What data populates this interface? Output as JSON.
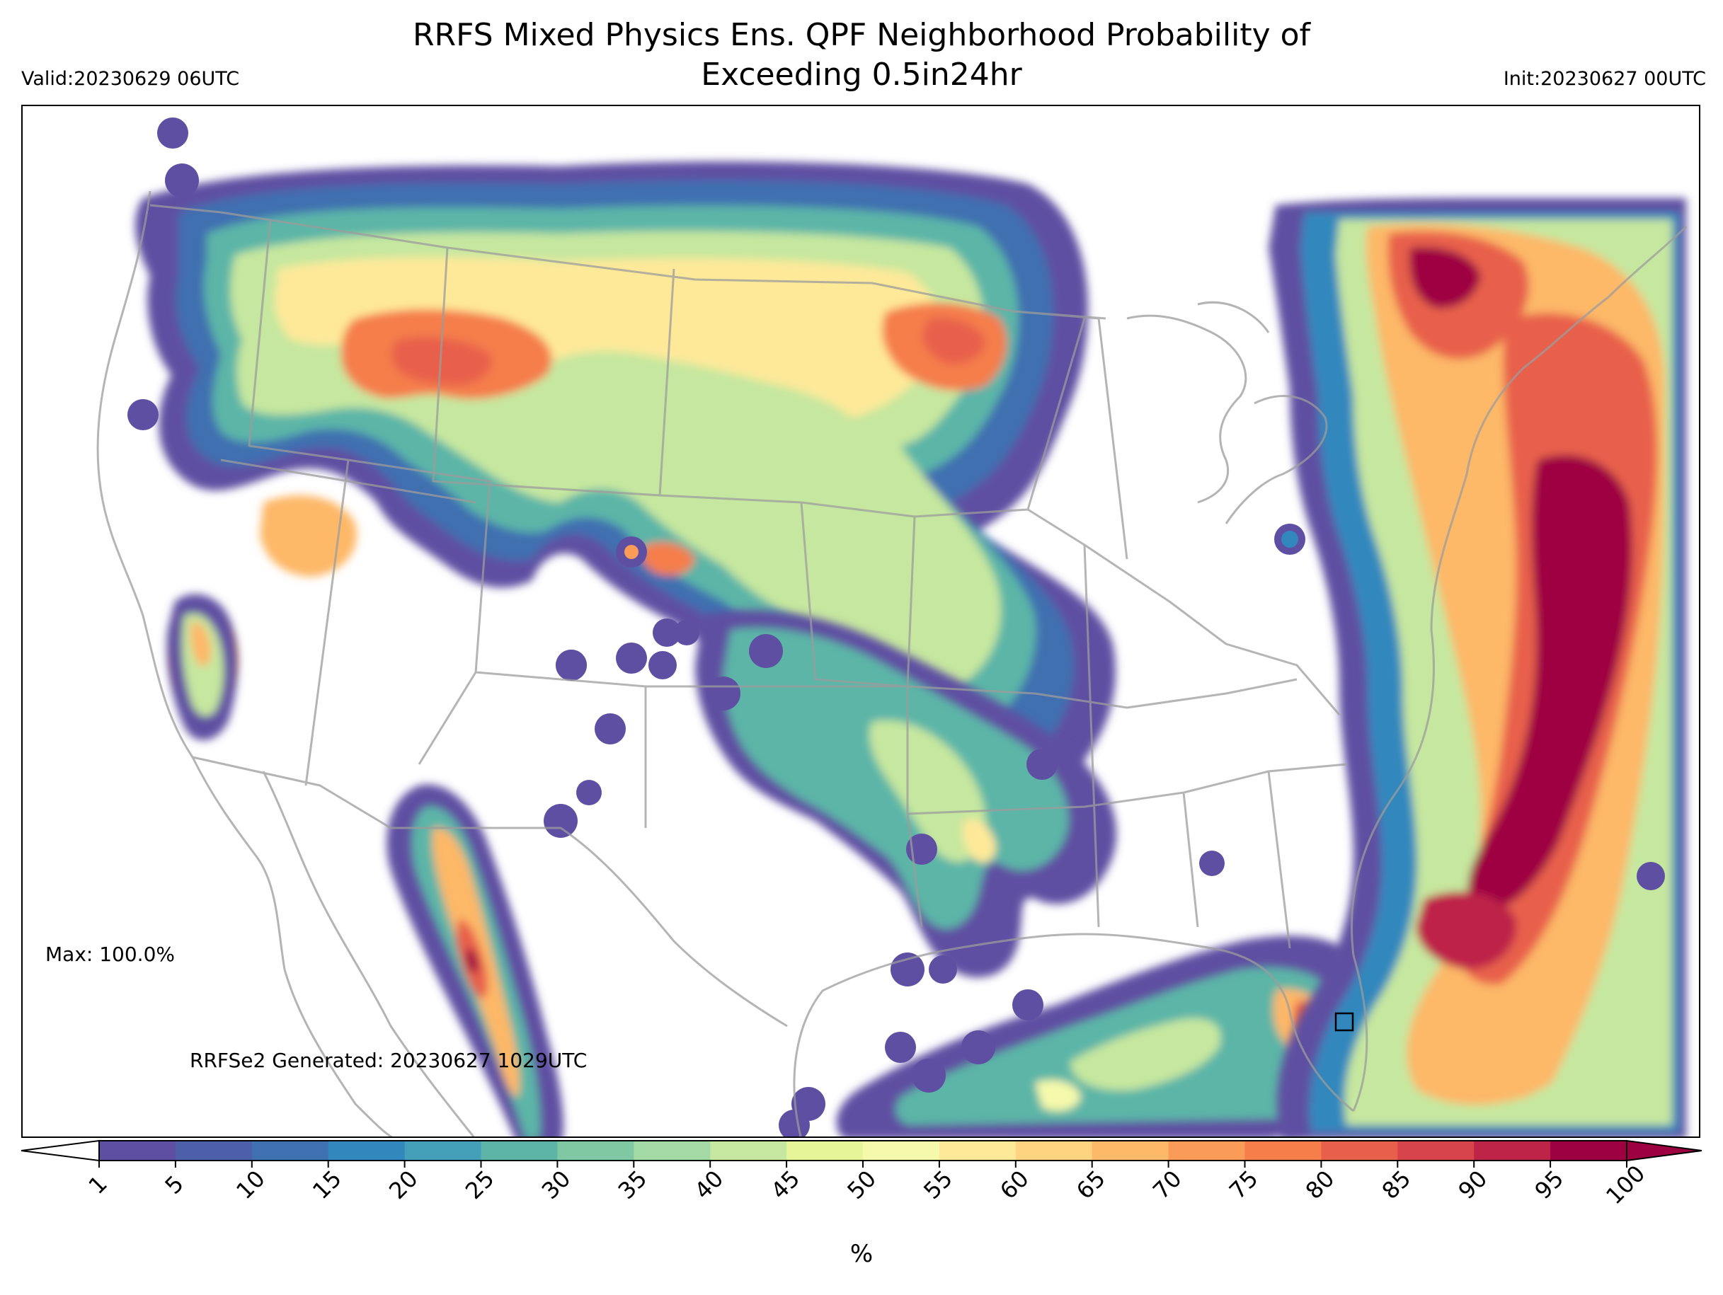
{
  "title": {
    "line1": "RRFS Mixed Physics Ens. QPF Neighborhood Probability of",
    "line2": "Exceeding 0.5in24hr"
  },
  "valid_label": "Valid:20230629 06UTC",
  "init_label": "Init:20230627 00UTC",
  "max_label": "Max: 100.0%",
  "generated_label": "RRFSe2 Generated: 20230627 1029UTC",
  "colorbar": {
    "unit": "%",
    "ticks": [
      "1",
      "5",
      "10",
      "15",
      "20",
      "25",
      "30",
      "35",
      "40",
      "45",
      "50",
      "55",
      "60",
      "65",
      "70",
      "75",
      "80",
      "85",
      "90",
      "95",
      "100"
    ],
    "colors": [
      "#5e4fa2",
      "#4d5fa9",
      "#3f70b0",
      "#3288bd",
      "#449fb8",
      "#5cb5a7",
      "#80c7a3",
      "#a3d9a4",
      "#c6e79f",
      "#e6f598",
      "#f5f9ac",
      "#fee999",
      "#fed481",
      "#fdb868",
      "#fa9b58",
      "#f57e4b",
      "#e8604c",
      "#d7444b",
      "#be2448",
      "#9e0142"
    ],
    "extend_low_color": "#ffffff",
    "extend_high_color": "#9e0142"
  },
  "map": {
    "projection": "lambert-conformal",
    "region": "CONUS",
    "variable": "24-hr QPF neighborhood probability exceeding 0.5 in",
    "units": "%",
    "max_marker": {
      "lat": 28.0,
      "lon": -81.8
    }
  }
}
